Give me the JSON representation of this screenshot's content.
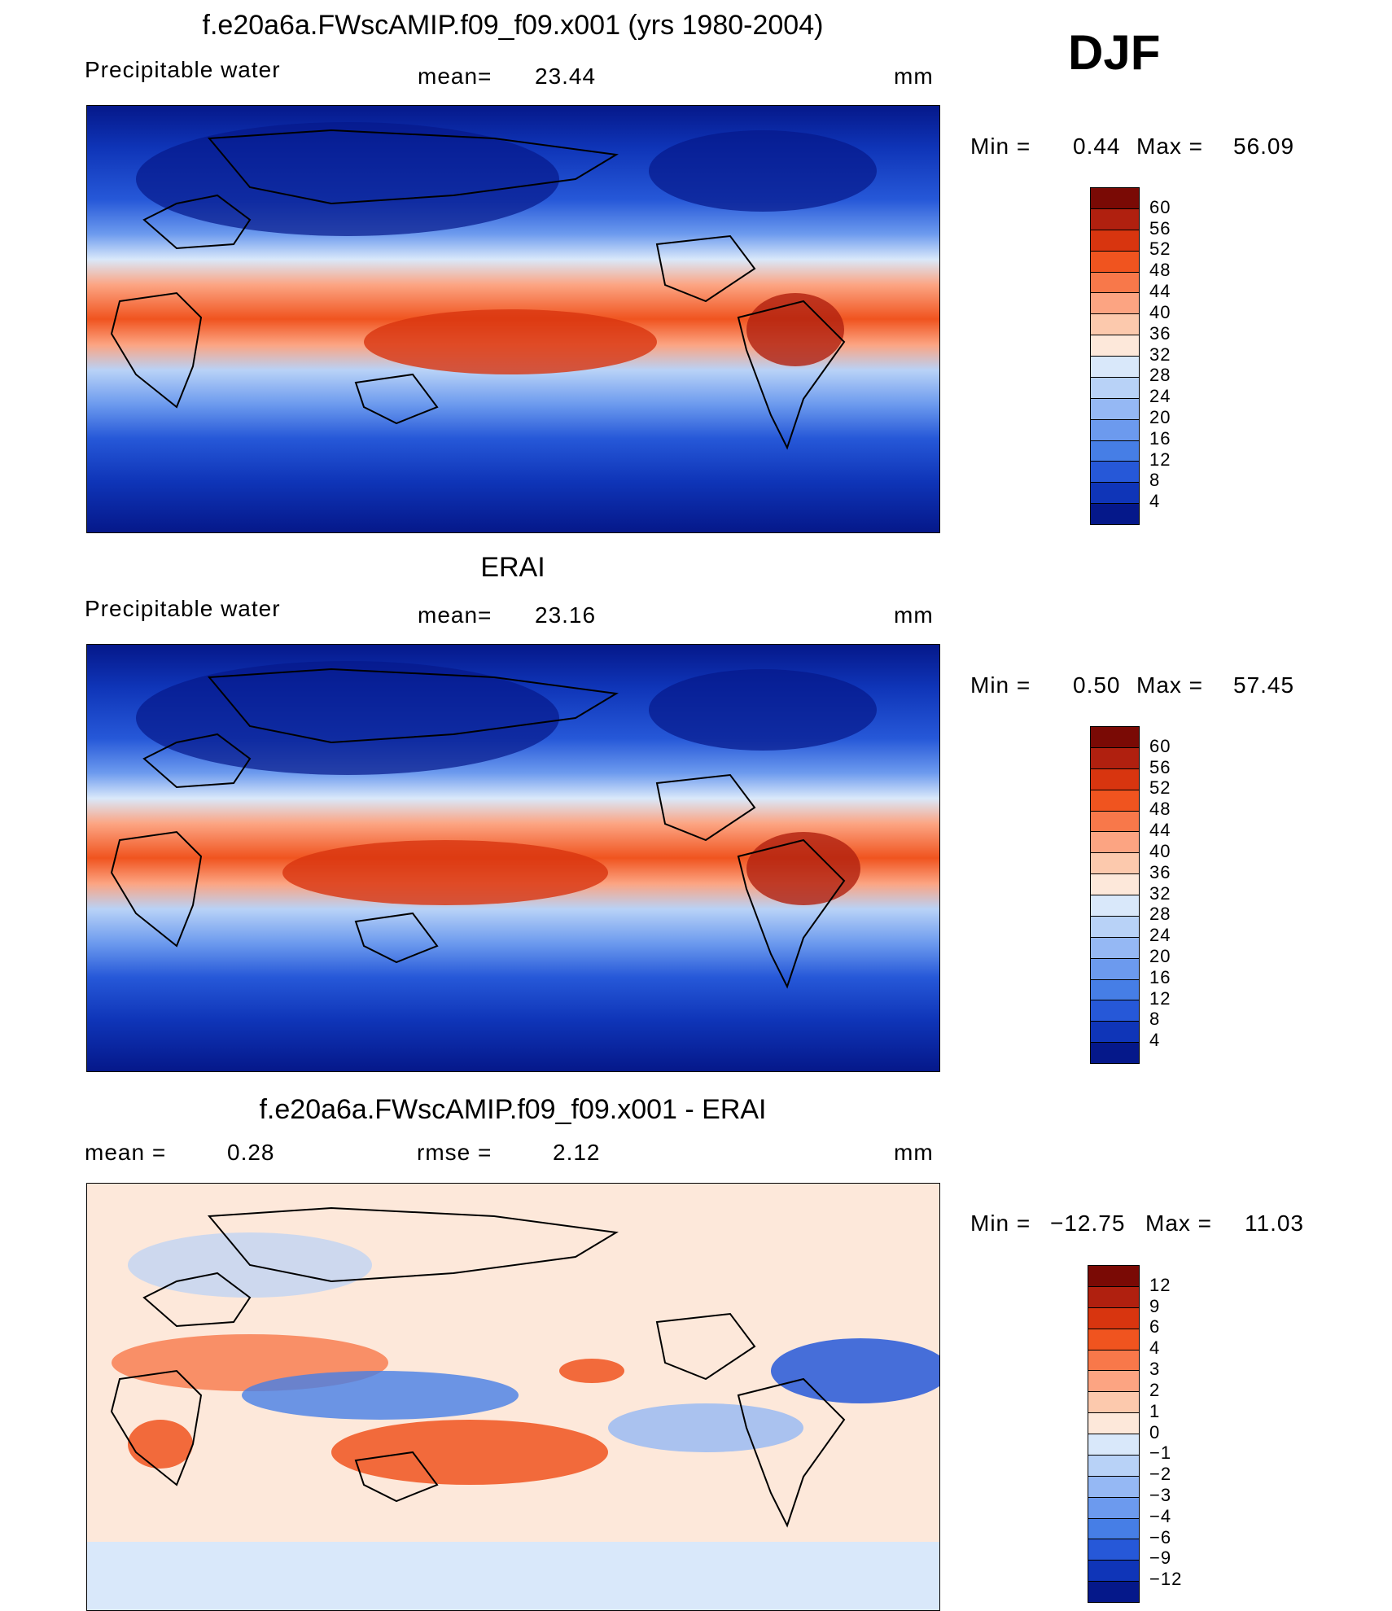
{
  "season": "DJF",
  "units": "mm",
  "panels": [
    {
      "title": "f.e20a6a.FWscAMIP.f09_f09.x001 (yrs 1980-2004)",
      "variable": "Precipitable water",
      "stat_label": "mean=",
      "stat_value": "23.44",
      "units": "mm",
      "min_label": "Min =",
      "min_value": "0.44",
      "max_label": "Max =",
      "max_value": "56.09"
    },
    {
      "title": "ERAI",
      "variable": "Precipitable water",
      "stat_label": "mean=",
      "stat_value": "23.16",
      "units": "mm",
      "min_label": "Min =",
      "min_value": "0.50",
      "max_label": "Max =",
      "max_value": "57.45"
    },
    {
      "title": "f.e20a6a.FWscAMIP.f09_f09.x001 - ERAI",
      "mean_label": "mean =",
      "mean_value": "0.28",
      "rmse_label": "rmse =",
      "rmse_value": "2.12",
      "units": "mm",
      "min_label": "Min =",
      "min_value": "−12.75",
      "max_label": "Max =",
      "max_value": "11.03"
    }
  ],
  "colorbars": {
    "absolute": {
      "labels": [
        "60",
        "56",
        "52",
        "48",
        "44",
        "40",
        "36",
        "32",
        "28",
        "24",
        "20",
        "16",
        "12",
        "8",
        "4"
      ],
      "colors": [
        "#7a0a05",
        "#b0200f",
        "#d8350f",
        "#f0541f",
        "#f8784a",
        "#fca482",
        "#fcc9ad",
        "#fde8da",
        "#d9e8fa",
        "#b8d2f7",
        "#95b8f4",
        "#6c9aee",
        "#467ee6",
        "#2658d8",
        "#0f35b8",
        "#05188a"
      ]
    },
    "difference": {
      "labels": [
        "12",
        "9",
        "6",
        "4",
        "3",
        "2",
        "1",
        "0",
        "−1",
        "−2",
        "−3",
        "−4",
        "−6",
        "−9",
        "−12"
      ],
      "colors": [
        "#7a0a05",
        "#b0200f",
        "#d8350f",
        "#f0541f",
        "#f8784a",
        "#fca482",
        "#fcc9ad",
        "#fde8da",
        "#d9e8fa",
        "#b8d2f7",
        "#95b8f4",
        "#6c9aee",
        "#467ee6",
        "#2658d8",
        "#0f35b8",
        "#05188a"
      ]
    }
  }
}
